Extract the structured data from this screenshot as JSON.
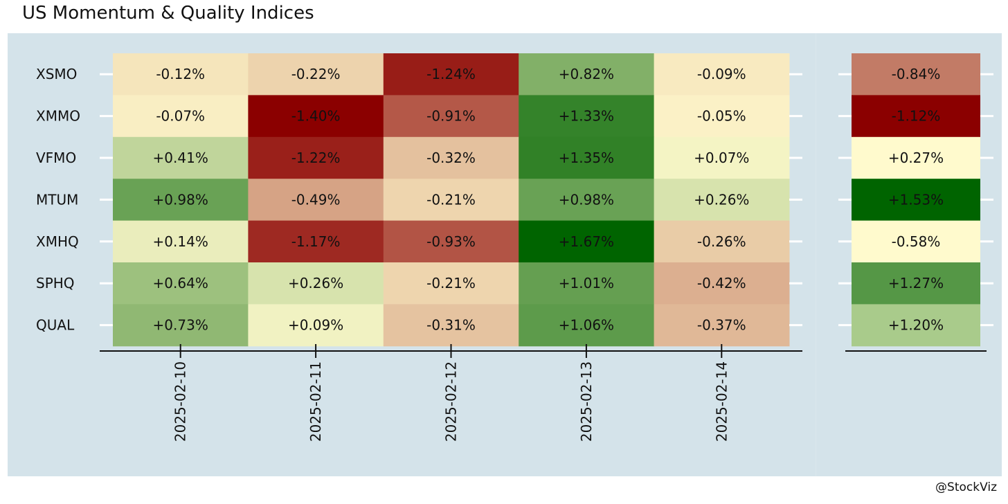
{
  "title": "US Momentum & Quality Indices",
  "credit": "@StockViz",
  "chart_data": [
    {
      "type": "heatmap",
      "rows": [
        "XSMO",
        "XMMO",
        "VFMO",
        "MTUM",
        "XMHQ",
        "SPHQ",
        "QUAL"
      ],
      "columns": [
        "2025-02-10",
        "2025-02-11",
        "2025-02-12",
        "2025-02-13",
        "2025-02-14"
      ],
      "values": [
        [
          -0.12,
          -0.22,
          -1.24,
          0.82,
          -0.09
        ],
        [
          -0.07,
          -1.4,
          -0.91,
          1.33,
          -0.05
        ],
        [
          0.41,
          -1.22,
          -0.32,
          1.35,
          0.07
        ],
        [
          0.98,
          -0.49,
          -0.21,
          0.98,
          0.26
        ],
        [
          0.14,
          -1.17,
          -0.93,
          1.67,
          -0.26
        ],
        [
          0.64,
          0.26,
          -0.21,
          1.01,
          -0.42
        ],
        [
          0.73,
          0.09,
          -0.31,
          1.06,
          -0.37
        ]
      ],
      "labels": [
        [
          "-0.12%",
          "-0.22%",
          "-1.24%",
          "+0.82%",
          "-0.09%"
        ],
        [
          "-0.07%",
          "-1.40%",
          "-0.91%",
          "+1.33%",
          "-0.05%"
        ],
        [
          "+0.41%",
          "-1.22%",
          "-0.32%",
          "+1.35%",
          "+0.07%"
        ],
        [
          "+0.98%",
          "-0.49%",
          "-0.21%",
          "+0.98%",
          "+0.26%"
        ],
        [
          "+0.14%",
          "-1.17%",
          "-0.93%",
          "+1.67%",
          "-0.26%"
        ],
        [
          "+0.64%",
          "+0.26%",
          "-0.21%",
          "+1.01%",
          "-0.42%"
        ],
        [
          "+0.73%",
          "+0.09%",
          "-0.31%",
          "+1.06%",
          "-0.37%"
        ]
      ],
      "color_scale": {
        "low": "#8b0000",
        "mid": "#fffacd",
        "high": "#006400"
      }
    },
    {
      "type": "heatmap",
      "rows": [
        "XSMO",
        "XMMO",
        "VFMO",
        "MTUM",
        "XMHQ",
        "SPHQ",
        "QUAL"
      ],
      "values": [
        -0.84,
        -1.12,
        0.27,
        1.53,
        -0.58,
        1.27,
        1.2
      ],
      "labels": [
        "-0.84%",
        "-1.12%",
        "+0.27%",
        "+1.53%",
        "-0.58%",
        "+1.27%",
        "+1.20%"
      ],
      "colors": [
        "#c27b66",
        "#8b0000",
        "#fffacd",
        "#006400",
        "#fffacd",
        "#559746",
        "#a9cb8b"
      ]
    }
  ]
}
